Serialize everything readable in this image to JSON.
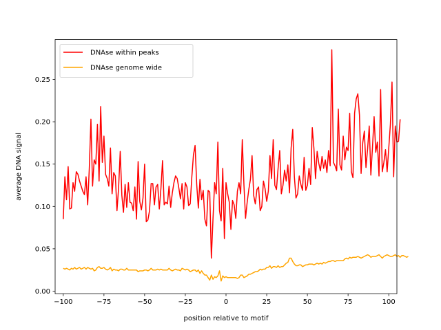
{
  "chart_data": {
    "type": "line",
    "xlabel": "position relative to motif",
    "ylabel": "average DNA signal",
    "xlim": [
      -105,
      105
    ],
    "ylim": [
      -0.003,
      0.297
    ],
    "xticks": [
      -100,
      -75,
      -50,
      -25,
      0,
      25,
      50,
      75,
      100
    ],
    "xtick_labels": [
      "−100",
      "−75",
      "−50",
      "−25",
      "0",
      "25",
      "50",
      "75",
      "100"
    ],
    "yticks": [
      0.0,
      0.05,
      0.1,
      0.15,
      0.2,
      0.25
    ],
    "ytick_labels": [
      "0.00",
      "0.05",
      "0.10",
      "0.15",
      "0.20",
      "0.25"
    ],
    "grid": false,
    "legend_position": "upper-left",
    "x_start": -100,
    "series": [
      {
        "name": "DNAse within peaks",
        "color": "#ff0000",
        "values": [
          0.085,
          0.135,
          0.108,
          0.147,
          0.097,
          0.098,
          0.128,
          0.118,
          0.141,
          0.138,
          0.13,
          0.124,
          0.118,
          0.114,
          0.135,
          0.102,
          0.145,
          0.203,
          0.124,
          0.155,
          0.15,
          0.197,
          0.13,
          0.218,
          0.152,
          0.183,
          0.138,
          0.133,
          0.124,
          0.169,
          0.115,
          0.14,
          0.136,
          0.095,
          0.122,
          0.165,
          0.113,
          0.093,
          0.126,
          0.099,
          0.128,
          0.105,
          0.104,
          0.095,
          0.123,
          0.085,
          0.153,
          0.106,
          0.096,
          0.11,
          0.15,
          0.082,
          0.084,
          0.095,
          0.127,
          0.127,
          0.102,
          0.123,
          0.126,
          0.097,
          0.121,
          0.154,
          0.102,
          0.105,
          0.103,
          0.124,
          0.099,
          0.116,
          0.128,
          0.136,
          0.133,
          0.122,
          0.109,
          0.127,
          0.097,
          0.128,
          0.123,
          0.101,
          0.103,
          0.135,
          0.161,
          0.172,
          0.126,
          0.098,
          0.132,
          0.108,
          0.119,
          0.085,
          0.077,
          0.119,
          0.117,
          0.039,
          0.085,
          0.128,
          0.115,
          0.176,
          0.095,
          0.083,
          0.145,
          0.062,
          0.128,
          0.115,
          0.105,
          0.073,
          0.107,
          0.102,
          0.086,
          0.118,
          0.128,
          0.115,
          0.179,
          0.126,
          0.086,
          0.105,
          0.12,
          0.132,
          0.16,
          0.113,
          0.103,
          0.12,
          0.123,
          0.095,
          0.1,
          0.13,
          0.121,
          0.106,
          0.118,
          0.16,
          0.133,
          0.179,
          0.125,
          0.12,
          0.145,
          0.166,
          0.115,
          0.125,
          0.143,
          0.13,
          0.149,
          0.116,
          0.169,
          0.191,
          0.135,
          0.11,
          0.115,
          0.136,
          0.126,
          0.119,
          0.158,
          0.119,
          0.125,
          0.145,
          0.126,
          0.193,
          0.169,
          0.133,
          0.165,
          0.151,
          0.142,
          0.159,
          0.145,
          0.155,
          0.14,
          0.166,
          0.148,
          0.285,
          0.152,
          0.148,
          0.142,
          0.215,
          0.149,
          0.143,
          0.183,
          0.155,
          0.17,
          0.166,
          0.21,
          0.141,
          0.134,
          0.21,
          0.227,
          0.233,
          0.208,
          0.139,
          0.175,
          0.189,
          0.146,
          0.168,
          0.195,
          0.137,
          0.17,
          0.206,
          0.164,
          0.176,
          0.136,
          0.238,
          0.141,
          0.152,
          0.167,
          0.141,
          0.169,
          0.197,
          0.247,
          0.135,
          0.195,
          0.176,
          0.177,
          0.203
        ]
      },
      {
        "name": "DNAse genome wide",
        "color": "#ffa500",
        "values": [
          0.027,
          0.026,
          0.027,
          0.026,
          0.025,
          0.027,
          0.026,
          0.028,
          0.026,
          0.027,
          0.028,
          0.026,
          0.027,
          0.028,
          0.026,
          0.028,
          0.027,
          0.026,
          0.027,
          0.024,
          0.025,
          0.028,
          0.029,
          0.027,
          0.027,
          0.028,
          0.026,
          0.025,
          0.026,
          0.028,
          0.024,
          0.026,
          0.025,
          0.025,
          0.024,
          0.026,
          0.026,
          0.025,
          0.025,
          0.027,
          0.025,
          0.025,
          0.025,
          0.025,
          0.025,
          0.025,
          0.023,
          0.024,
          0.024,
          0.024,
          0.025,
          0.025,
          0.024,
          0.025,
          0.027,
          0.025,
          0.025,
          0.025,
          0.026,
          0.025,
          0.026,
          0.025,
          0.025,
          0.025,
          0.025,
          0.027,
          0.025,
          0.024,
          0.025,
          0.026,
          0.025,
          0.025,
          0.024,
          0.027,
          0.026,
          0.025,
          0.026,
          0.025,
          0.023,
          0.024,
          0.025,
          0.025,
          0.023,
          0.025,
          0.021,
          0.024,
          0.021,
          0.019,
          0.019,
          0.016,
          0.013,
          0.019,
          0.014,
          0.017,
          0.016,
          0.018,
          0.024,
          0.012,
          0.018,
          0.016,
          0.017,
          0.016,
          0.016,
          0.016,
          0.016,
          0.016,
          0.016,
          0.015,
          0.016,
          0.019,
          0.019,
          0.016,
          0.017,
          0.018,
          0.02,
          0.02,
          0.021,
          0.022,
          0.023,
          0.023,
          0.024,
          0.026,
          0.025,
          0.026,
          0.026,
          0.028,
          0.028,
          0.03,
          0.027,
          0.029,
          0.029,
          0.028,
          0.03,
          0.028,
          0.029,
          0.029,
          0.031,
          0.033,
          0.034,
          0.039,
          0.039,
          0.035,
          0.032,
          0.03,
          0.03,
          0.031,
          0.031,
          0.029,
          0.03,
          0.031,
          0.031,
          0.032,
          0.032,
          0.032,
          0.031,
          0.032,
          0.033,
          0.032,
          0.033,
          0.032,
          0.034,
          0.033,
          0.034,
          0.035,
          0.035,
          0.036,
          0.036,
          0.035,
          0.036,
          0.036,
          0.036,
          0.036,
          0.036,
          0.038,
          0.039,
          0.038,
          0.04,
          0.039,
          0.04,
          0.04,
          0.04,
          0.041,
          0.04,
          0.039,
          0.04,
          0.041,
          0.042,
          0.043,
          0.042,
          0.04,
          0.041,
          0.041,
          0.041,
          0.042,
          0.043,
          0.041,
          0.039,
          0.041,
          0.042,
          0.043,
          0.042,
          0.041,
          0.041,
          0.042,
          0.043,
          0.041,
          0.042,
          0.04,
          0.042,
          0.042,
          0.041,
          0.04,
          0.041
        ]
      }
    ]
  }
}
